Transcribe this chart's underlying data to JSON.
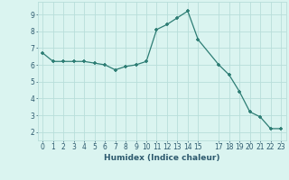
{
  "x": [
    0,
    1,
    2,
    3,
    4,
    5,
    6,
    7,
    8,
    9,
    10,
    11,
    12,
    13,
    14,
    15,
    17,
    18,
    19,
    20,
    21,
    22,
    23
  ],
  "y": [
    6.7,
    6.2,
    6.2,
    6.2,
    6.2,
    6.1,
    6.0,
    5.7,
    5.9,
    6.0,
    6.2,
    8.1,
    8.4,
    8.8,
    9.2,
    7.5,
    6.0,
    5.4,
    4.4,
    3.2,
    2.9,
    2.2,
    2.2
  ],
  "line_color": "#2d7d74",
  "marker_color": "#2d7d74",
  "bg_color": "#daf4f0",
  "grid_color": "#b8deda",
  "xlabel": "Humidex (Indice chaleur)",
  "xlim": [
    -0.5,
    23.5
  ],
  "ylim": [
    1.5,
    9.75
  ],
  "yticks": [
    2,
    3,
    4,
    5,
    6,
    7,
    8,
    9
  ],
  "xticks": [
    0,
    1,
    2,
    3,
    4,
    5,
    6,
    7,
    8,
    9,
    10,
    11,
    12,
    13,
    14,
    15,
    17,
    18,
    19,
    20,
    21,
    22,
    23
  ],
  "xtick_labels": [
    "0",
    "1",
    "2",
    "3",
    "4",
    "5",
    "6",
    "7",
    "8",
    "9",
    "10",
    "11",
    "12",
    "13",
    "14",
    "15",
    "17",
    "18",
    "19",
    "20",
    "21",
    "22",
    "23"
  ],
  "font_color": "#2d5a6e",
  "label_fontsize": 6.5,
  "tick_fontsize": 5.5
}
